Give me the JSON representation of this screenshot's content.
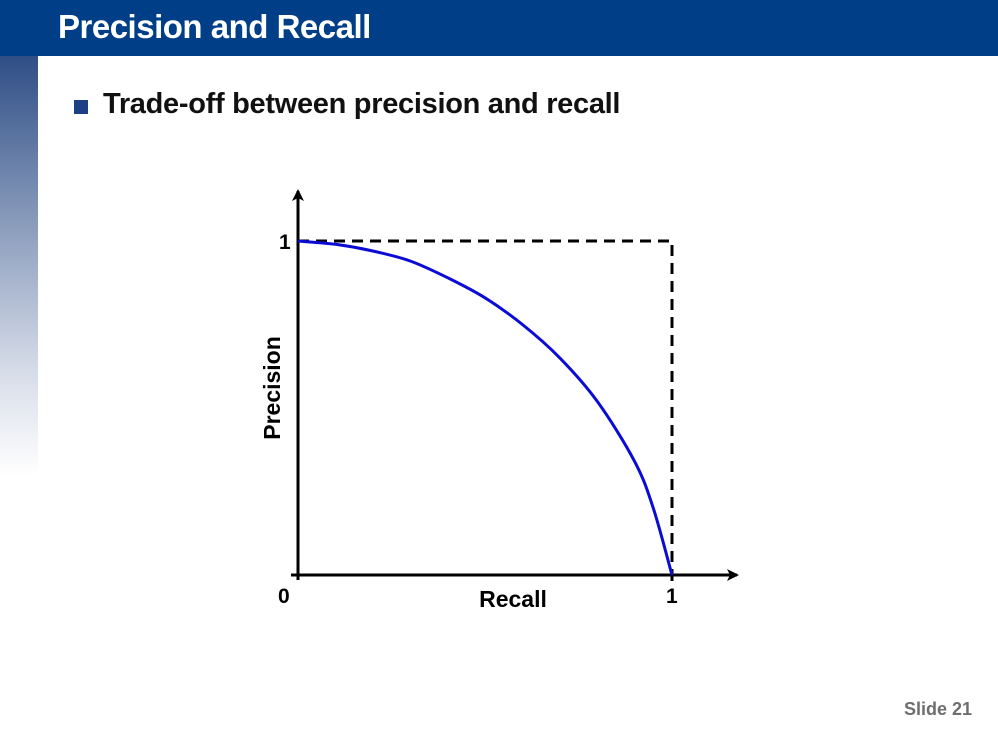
{
  "slide": {
    "title": "Precision and Recall",
    "bullet": "Trade-off between precision and recall",
    "slide_number": "Slide 21"
  },
  "colors": {
    "header": "#003f87",
    "curve": "#0b0bd6",
    "bullet": "#1d3f86"
  },
  "chart_data": {
    "type": "line",
    "xlabel": "Recall",
    "ylabel": "Precision",
    "xlim": [
      0,
      1
    ],
    "ylim": [
      0,
      1
    ],
    "x_ticks": [
      "0",
      "1"
    ],
    "y_ticks": [
      "1"
    ],
    "grid": false,
    "legend": "none",
    "curve": {
      "x": [
        0,
        0.1,
        0.2,
        0.3,
        0.4,
        0.5,
        0.6,
        0.7,
        0.8,
        0.9,
        0.95,
        1.0
      ],
      "y": [
        1.0,
        0.99,
        0.97,
        0.94,
        0.89,
        0.83,
        0.75,
        0.65,
        0.52,
        0.34,
        0.2,
        0.0
      ]
    },
    "ideal_boundary": {
      "style": "dashed",
      "x": [
        0,
        1,
        1
      ],
      "y": [
        1,
        1,
        0
      ]
    }
  }
}
